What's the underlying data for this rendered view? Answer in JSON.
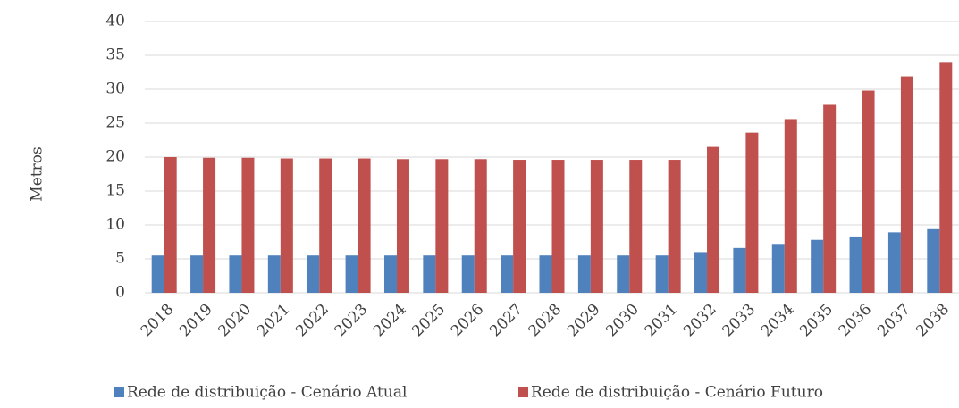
{
  "chart_data": {
    "type": "bar",
    "y_label": "Metros",
    "categories": [
      "2018",
      "2019",
      "2020",
      "2021",
      "2022",
      "2023",
      "2024",
      "2025",
      "2026",
      "2027",
      "2028",
      "2029",
      "2030",
      "2031",
      "2032",
      "2033",
      "2034",
      "2035",
      "2036",
      "2037",
      "2038"
    ],
    "series": [
      {
        "name": "Rede de distribuição - Cenário Atual",
        "color": "#4f81bd",
        "values": [
          5.5,
          5.5,
          5.5,
          5.5,
          5.5,
          5.5,
          5.5,
          5.5,
          5.5,
          5.5,
          5.5,
          5.5,
          5.5,
          5.5,
          6.0,
          6.6,
          7.2,
          7.8,
          8.3,
          8.9,
          9.5
        ]
      },
      {
        "name": "Rede de distribuição - Cenário Futuro",
        "color": "#c0504d",
        "values": [
          20.0,
          19.9,
          19.9,
          19.8,
          19.8,
          19.8,
          19.7,
          19.7,
          19.7,
          19.6,
          19.6,
          19.6,
          19.6,
          19.6,
          21.5,
          23.6,
          25.6,
          27.7,
          29.8,
          31.9,
          33.9
        ]
      }
    ],
    "ylim": [
      0,
      40
    ],
    "yticks": [
      0,
      5,
      10,
      15,
      20,
      25,
      30,
      35,
      40
    ],
    "grid": true,
    "legend": "bottom"
  }
}
